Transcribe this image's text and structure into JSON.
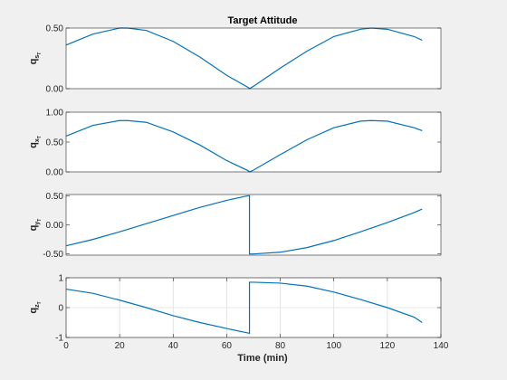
{
  "figure": {
    "title": "Target Attitude",
    "xlabel": "Time (min)"
  },
  "chart_data": [
    {
      "type": "line",
      "ylabel": {
        "base": "q",
        "sub": "s",
        "subsub": "T"
      },
      "ylim": [
        0,
        0.5
      ],
      "yticks": [
        0.0,
        0.5
      ],
      "ytick_labels": [
        "0.00",
        "0.50"
      ],
      "xlim": [
        0,
        133
      ],
      "grid": false,
      "color": "#0072BD",
      "series": [
        {
          "x": [
            0,
            10,
            20,
            23,
            30,
            40,
            50,
            60,
            68,
            68.5,
            70,
            80,
            90,
            100,
            110,
            114,
            120,
            130,
            133
          ],
          "y": [
            0.36,
            0.45,
            0.5,
            0.5,
            0.48,
            0.39,
            0.26,
            0.11,
            0.01,
            0.0,
            0.02,
            0.17,
            0.31,
            0.43,
            0.49,
            0.5,
            0.49,
            0.43,
            0.4
          ]
        }
      ]
    },
    {
      "type": "line",
      "ylabel": {
        "base": "q",
        "sub": "x",
        "subsub": "T"
      },
      "ylim": [
        0,
        1
      ],
      "yticks": [
        0.0,
        0.5,
        1.0
      ],
      "ytick_labels": [
        "0.00",
        "0.50",
        "1.00"
      ],
      "xlim": [
        0,
        133
      ],
      "grid": false,
      "color": "#0072BD",
      "series": [
        {
          "x": [
            0,
            10,
            20,
            23,
            30,
            40,
            50,
            60,
            68,
            68.5,
            70,
            80,
            90,
            100,
            110,
            114,
            120,
            130,
            133
          ],
          "y": [
            0.6,
            0.78,
            0.86,
            0.86,
            0.83,
            0.67,
            0.45,
            0.19,
            0.02,
            0.0,
            0.03,
            0.29,
            0.54,
            0.74,
            0.85,
            0.86,
            0.85,
            0.74,
            0.69
          ]
        }
      ]
    },
    {
      "type": "line",
      "ylabel": {
        "base": "q",
        "sub": "y",
        "subsub": "T"
      },
      "ylim": [
        -0.52,
        0.52
      ],
      "yticks": [
        -0.5,
        0.0,
        0.5
      ],
      "ytick_labels": [
        "-0.50",
        "0.00",
        "0.50"
      ],
      "xlim": [
        0,
        133
      ],
      "grid": false,
      "color": "#0072BD",
      "series": [
        {
          "x": [
            0,
            10,
            20,
            30,
            40,
            50,
            60,
            68,
            68.5,
            68.5,
            70,
            80,
            90,
            100,
            110,
            120,
            130,
            133
          ],
          "y": [
            -0.36,
            -0.25,
            -0.12,
            0.02,
            0.16,
            0.3,
            0.42,
            0.5,
            0.5,
            -0.5,
            -0.5,
            -0.47,
            -0.39,
            -0.27,
            -0.12,
            0.04,
            0.21,
            0.27
          ]
        }
      ]
    },
    {
      "type": "line",
      "ylabel": {
        "base": "q",
        "sub": "z",
        "subsub": "T"
      },
      "ylim": [
        -1,
        1
      ],
      "yticks": [
        -1,
        0,
        1
      ],
      "ytick_labels": [
        "-1",
        "0",
        "1"
      ],
      "xlim": [
        0,
        140
      ],
      "xticks": [
        0,
        20,
        40,
        60,
        80,
        100,
        120,
        140
      ],
      "xtick_labels": [
        "0",
        "20",
        "40",
        "60",
        "80",
        "100",
        "120",
        "140"
      ],
      "grid": true,
      "color": "#0072BD",
      "series": [
        {
          "x": [
            0,
            10,
            20,
            30,
            40,
            50,
            60,
            68,
            68.5,
            68.5,
            70,
            80,
            90,
            100,
            110,
            120,
            130,
            133
          ],
          "y": [
            0.62,
            0.48,
            0.25,
            0.0,
            -0.27,
            -0.5,
            -0.7,
            -0.85,
            -0.86,
            0.85,
            0.85,
            0.82,
            0.72,
            0.52,
            0.27,
            0.0,
            -0.32,
            -0.5
          ]
        }
      ]
    }
  ]
}
